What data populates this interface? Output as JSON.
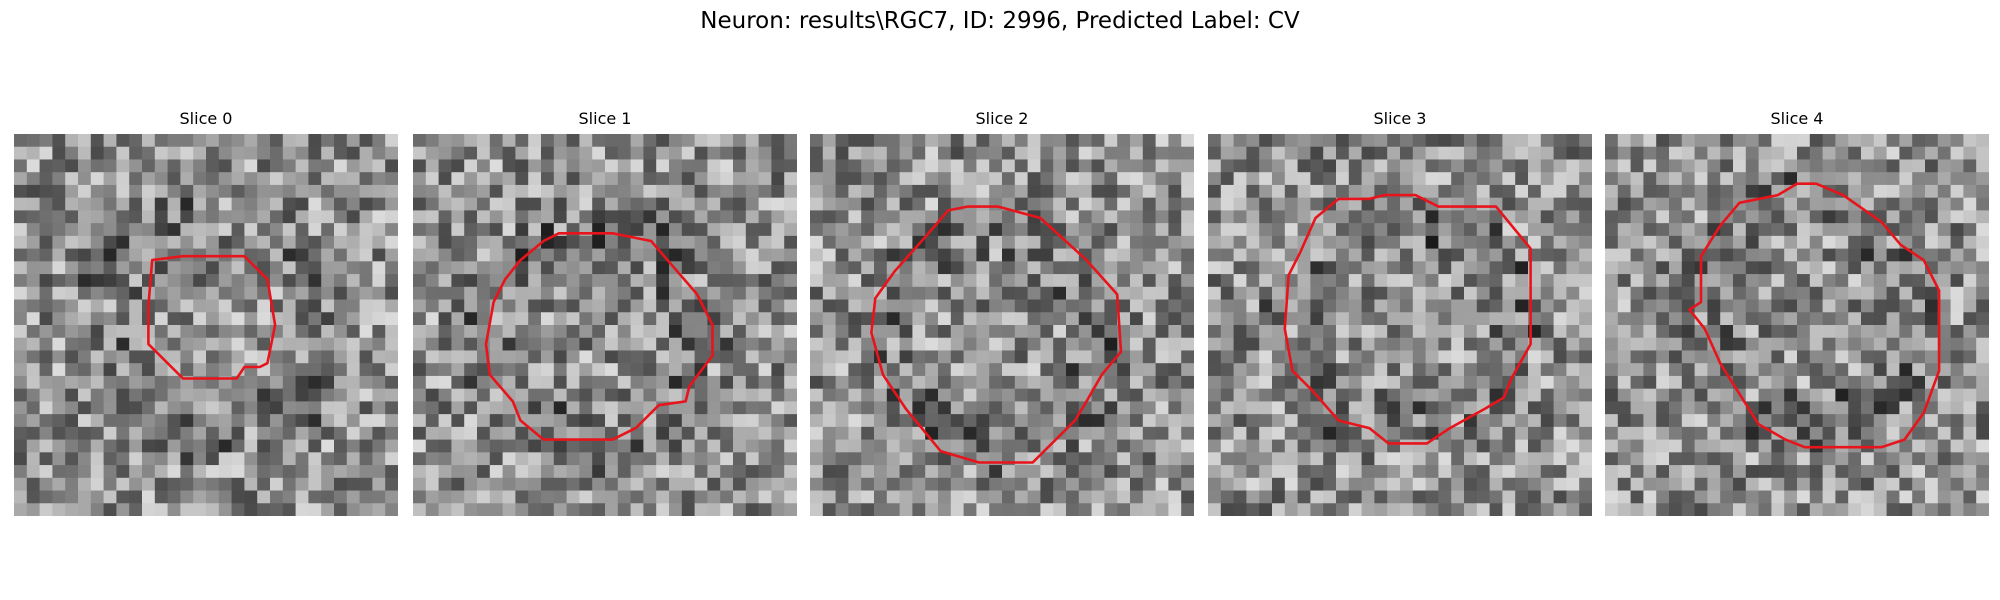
{
  "figure": {
    "title": "Neuron: results\\RGC7, ID: 2996, Predicted Label: CV"
  },
  "panels": [
    {
      "title": "Slice 0",
      "seed": 11,
      "contour": [
        [
          0.36,
          0.33
        ],
        [
          0.44,
          0.32
        ],
        [
          0.6,
          0.32
        ],
        [
          0.66,
          0.38
        ],
        [
          0.68,
          0.5
        ],
        [
          0.66,
          0.6
        ],
        [
          0.64,
          0.61
        ],
        [
          0.6,
          0.61
        ],
        [
          0.58,
          0.64
        ],
        [
          0.48,
          0.64
        ],
        [
          0.44,
          0.64
        ],
        [
          0.4,
          0.6
        ],
        [
          0.35,
          0.55
        ],
        [
          0.35,
          0.45
        ]
      ]
    },
    {
      "title": "Slice 1",
      "seed": 23,
      "contour": [
        [
          0.21,
          0.44
        ],
        [
          0.24,
          0.38
        ],
        [
          0.28,
          0.33
        ],
        [
          0.34,
          0.28
        ],
        [
          0.38,
          0.26
        ],
        [
          0.52,
          0.26
        ],
        [
          0.62,
          0.28
        ],
        [
          0.68,
          0.35
        ],
        [
          0.74,
          0.42
        ],
        [
          0.78,
          0.5
        ],
        [
          0.78,
          0.58
        ],
        [
          0.72,
          0.66
        ],
        [
          0.71,
          0.7
        ],
        [
          0.64,
          0.71
        ],
        [
          0.58,
          0.77
        ],
        [
          0.52,
          0.8
        ],
        [
          0.34,
          0.8
        ],
        [
          0.28,
          0.75
        ],
        [
          0.26,
          0.7
        ],
        [
          0.2,
          0.63
        ],
        [
          0.19,
          0.55
        ]
      ]
    },
    {
      "title": "Slice 2",
      "seed": 37,
      "contour": [
        [
          0.17,
          0.43
        ],
        [
          0.22,
          0.36
        ],
        [
          0.3,
          0.27
        ],
        [
          0.36,
          0.2
        ],
        [
          0.41,
          0.19
        ],
        [
          0.49,
          0.19
        ],
        [
          0.6,
          0.22
        ],
        [
          0.72,
          0.33
        ],
        [
          0.8,
          0.42
        ],
        [
          0.81,
          0.57
        ],
        [
          0.76,
          0.63
        ],
        [
          0.72,
          0.7
        ],
        [
          0.69,
          0.75
        ],
        [
          0.62,
          0.82
        ],
        [
          0.58,
          0.86
        ],
        [
          0.44,
          0.86
        ],
        [
          0.34,
          0.83
        ],
        [
          0.25,
          0.72
        ],
        [
          0.19,
          0.63
        ],
        [
          0.16,
          0.52
        ]
      ]
    },
    {
      "title": "Slice 3",
      "seed": 49,
      "contour": [
        [
          0.21,
          0.37
        ],
        [
          0.24,
          0.31
        ],
        [
          0.28,
          0.22
        ],
        [
          0.34,
          0.17
        ],
        [
          0.42,
          0.17
        ],
        [
          0.46,
          0.16
        ],
        [
          0.54,
          0.16
        ],
        [
          0.6,
          0.19
        ],
        [
          0.75,
          0.19
        ],
        [
          0.84,
          0.3
        ],
        [
          0.84,
          0.55
        ],
        [
          0.79,
          0.64
        ],
        [
          0.77,
          0.69
        ],
        [
          0.72,
          0.72
        ],
        [
          0.63,
          0.77
        ],
        [
          0.57,
          0.81
        ],
        [
          0.47,
          0.81
        ],
        [
          0.42,
          0.77
        ],
        [
          0.34,
          0.75
        ],
        [
          0.27,
          0.67
        ],
        [
          0.22,
          0.62
        ],
        [
          0.2,
          0.51
        ]
      ]
    },
    {
      "title": "Slice 4",
      "seed": 61,
      "contour": [
        [
          0.25,
          0.44
        ],
        [
          0.25,
          0.32
        ],
        [
          0.3,
          0.24
        ],
        [
          0.35,
          0.18
        ],
        [
          0.45,
          0.16
        ],
        [
          0.5,
          0.13
        ],
        [
          0.55,
          0.13
        ],
        [
          0.62,
          0.16
        ],
        [
          0.72,
          0.23
        ],
        [
          0.77,
          0.29
        ],
        [
          0.83,
          0.33
        ],
        [
          0.87,
          0.41
        ],
        [
          0.87,
          0.62
        ],
        [
          0.83,
          0.73
        ],
        [
          0.78,
          0.8
        ],
        [
          0.72,
          0.82
        ],
        [
          0.52,
          0.82
        ],
        [
          0.47,
          0.8
        ],
        [
          0.4,
          0.76
        ],
        [
          0.35,
          0.68
        ],
        [
          0.3,
          0.6
        ],
        [
          0.26,
          0.51
        ],
        [
          0.22,
          0.46
        ]
      ]
    }
  ],
  "colors": {
    "contour": "#e8141b"
  }
}
